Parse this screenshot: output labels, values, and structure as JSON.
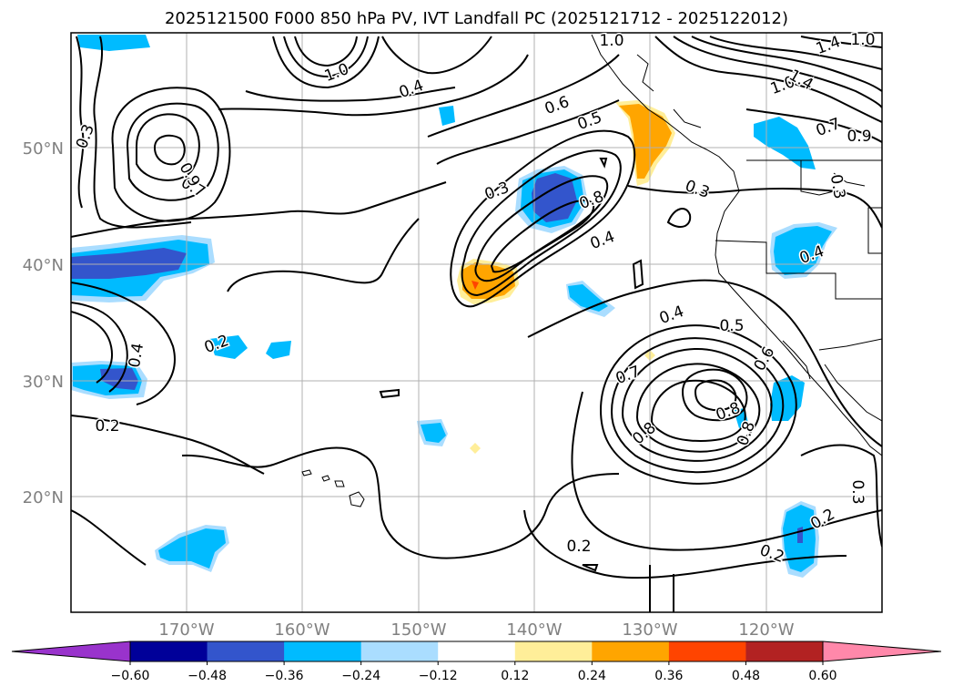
{
  "title": "2025121500 F000 850 hPa PV, IVT Landfall PC (2025121712 - 2025122012)",
  "colors": {
    "purple": "#9933cc",
    "navy": "#000099",
    "royal_blue": "#3355cc",
    "deep_sky": "#00bbff",
    "light_sky": "#aaddff",
    "white": "#ffffff",
    "pale_yellow": "#ffee99",
    "orange": "#ffa500",
    "red_orange": "#ff4400",
    "firebrick": "#b22222",
    "pink": "#ff88aa",
    "grid": "#b0b0b0",
    "axis_label": "#808080"
  },
  "map": {
    "lat_ticks": [
      "50°N",
      "40°N",
      "30°N",
      "20°N"
    ],
    "lon_ticks": [
      "170°W",
      "160°W",
      "150°W",
      "140°W",
      "130°W",
      "120°W"
    ],
    "contour_labels": [
      "0.2",
      "0.2",
      "0.2",
      "0.2",
      "0.2",
      "0.3",
      "0.3",
      "0.3",
      "0.3",
      "0.3",
      "0.4",
      "0.4",
      "0.4",
      "0.4",
      "0.4",
      "0.5",
      "0.5",
      "0.6",
      "0.6",
      "0.7",
      "0.7",
      "0.8",
      "0.8",
      "0.8",
      "0.8",
      "0.9",
      "1.0",
      "1.0",
      "1.0",
      "1.4",
      "1.4",
      "1.0",
      "0.7",
      "0.9"
    ]
  },
  "colorbar": {
    "ticks": [
      "−0.60",
      "−0.48",
      "−0.36",
      "−0.24",
      "−0.12",
      "0.12",
      "0.24",
      "0.36",
      "0.48",
      "0.60"
    ],
    "colors": [
      "#9933cc",
      "#000099",
      "#3355cc",
      "#00bbff",
      "#aaddff",
      "#ffffff",
      "#ffee99",
      "#ffa500",
      "#ff4400",
      "#b22222",
      "#ff88aa"
    ]
  }
}
